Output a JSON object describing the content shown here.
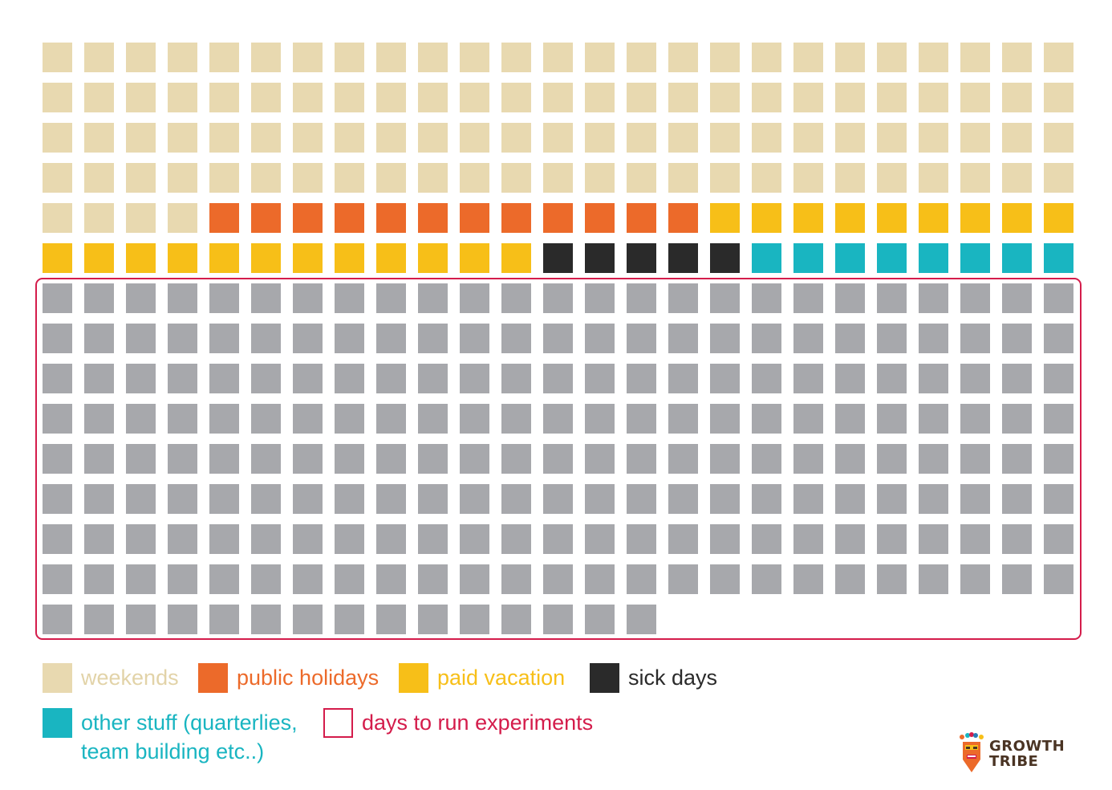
{
  "chart_data": {
    "type": "waffle",
    "columns": 25,
    "total_days": 365,
    "categories": [
      {
        "key": "weekends",
        "label": "weekends",
        "count": 104,
        "color": "#e8d9b0",
        "label_color": "#e2d3a8"
      },
      {
        "key": "public_holidays",
        "label": "public holidays",
        "count": 12,
        "color": "#ec6a2a",
        "label_color": "#ec6a2a"
      },
      {
        "key": "paid_vacation",
        "label": "paid vacation",
        "count": 21,
        "color": "#f7bf18",
        "label_color": "#f7bf18"
      },
      {
        "key": "sick_days",
        "label": "sick days",
        "count": 5,
        "color": "#2a2a2a",
        "label_color": "#2a2a2a"
      },
      {
        "key": "other_stuff",
        "label": "other stuff (quarterlies,",
        "label_line2": "team building etc..)",
        "count": 8,
        "color": "#19b5c1",
        "label_color": "#19b5c1"
      },
      {
        "key": "experiments",
        "label": "days to run experiments",
        "count": 215,
        "color": "#a7a8ac",
        "label_color": "#d41c4b",
        "outline_color": "#d41c4b"
      }
    ]
  },
  "logo": {
    "line1": "GROWTH",
    "line2": "TRIBE"
  }
}
